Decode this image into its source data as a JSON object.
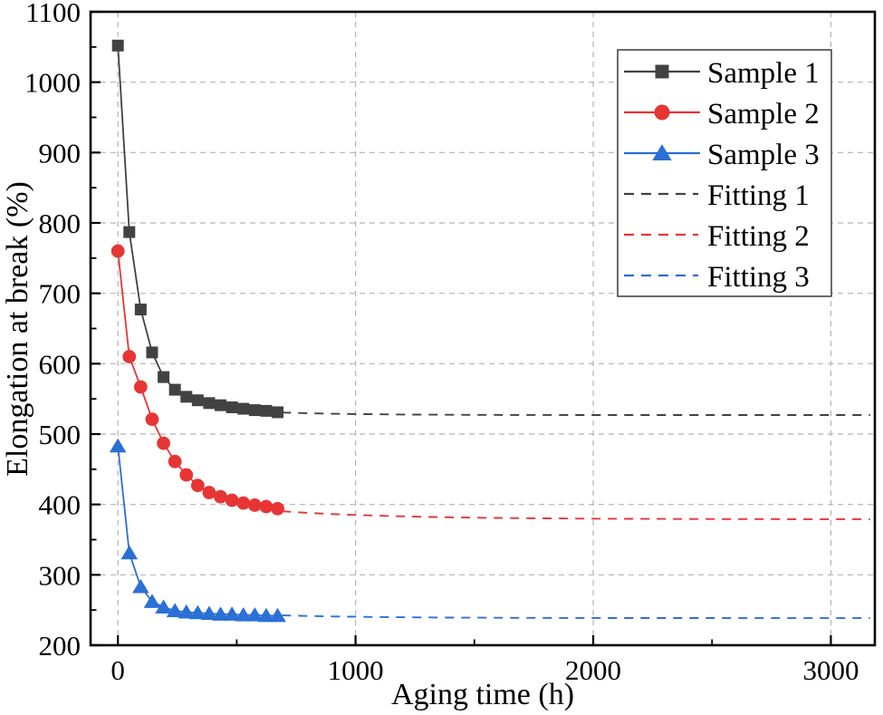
{
  "figure": {
    "background": "#ffffff"
  },
  "chart_data": {
    "type": "line",
    "title": "",
    "xlabel": "Aging time (h)",
    "ylabel": "Elongation at break (%)",
    "xlim": [
      -115,
      3185
    ],
    "ylim": [
      200,
      1100
    ],
    "x_major_ticks": [
      0,
      1000,
      2000,
      3000
    ],
    "x_minor_ticks": [
      500,
      1500,
      2500
    ],
    "y_major_ticks": [
      200,
      300,
      400,
      500,
      600,
      700,
      800,
      900,
      1000,
      1100
    ],
    "y_minor_ticks": [
      250,
      350,
      450,
      550,
      650,
      750,
      850,
      950,
      1050
    ],
    "grid": {
      "show": true,
      "color": "#b3b3b3",
      "dash": "6 5"
    },
    "x": [
      0,
      48,
      96,
      144,
      192,
      240,
      288,
      336,
      384,
      432,
      480,
      528,
      576,
      624,
      672
    ],
    "series": [
      {
        "name": "Sample 1",
        "type": "markers+line",
        "marker": "square",
        "color": "#424242",
        "values": [
          1052,
          787,
          677,
          616,
          581,
          563,
          553,
          548,
          544,
          541,
          538,
          536,
          534,
          533,
          531
        ]
      },
      {
        "name": "Sample 2",
        "type": "markers+line",
        "marker": "circle",
        "color": "#e73535",
        "values": [
          760,
          610,
          567,
          521,
          487,
          461,
          442,
          427,
          417,
          411,
          406,
          402,
          399,
          397,
          394
        ]
      },
      {
        "name": "Sample 3",
        "type": "markers+line",
        "marker": "triangle",
        "color": "#2a70d5",
        "values": [
          483,
          331,
          283,
          262,
          254,
          249,
          247,
          246,
          245,
          244,
          244,
          243,
          243,
          242,
          242
        ]
      },
      {
        "name": "Fitting 1",
        "type": "fit-dashed",
        "color": "#424242",
        "fit": {
          "asymptote": 527,
          "amplitude": 30,
          "tau": 330,
          "t_start": 690,
          "t_end": 3185
        }
      },
      {
        "name": "Fitting 2",
        "type": "fit-dashed",
        "color": "#e73535",
        "fit": {
          "asymptote": 379,
          "amplitude": 45,
          "tau": 500,
          "t_start": 690,
          "t_end": 3185
        }
      },
      {
        "name": "Fitting 3",
        "type": "fit-dashed",
        "color": "#2a70d5",
        "fit": {
          "asymptote": 238.5,
          "amplitude": 18,
          "tau": 450,
          "t_start": 690,
          "t_end": 3185
        }
      }
    ],
    "legend": {
      "position": "top-right",
      "entries": [
        "Sample 1",
        "Sample 2",
        "Sample 3",
        "Fitting 1",
        "Fitting 2",
        "Fitting 3"
      ]
    }
  },
  "colors": {
    "axis": "#000000",
    "sample1": "#424242",
    "sample2": "#e73535",
    "sample3": "#2a70d5",
    "gridline": "#b3b3b3"
  }
}
